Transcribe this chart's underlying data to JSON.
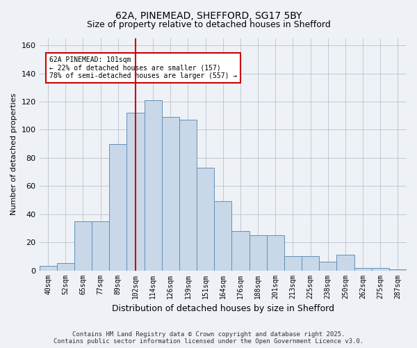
{
  "title1": "62A, PINEMEAD, SHEFFORD, SG17 5BY",
  "title2": "Size of property relative to detached houses in Shefford",
  "xlabel": "Distribution of detached houses by size in Shefford",
  "ylabel": "Number of detached properties",
  "categories": [
    "40sqm",
    "52sqm",
    "65sqm",
    "77sqm",
    "89sqm",
    "102sqm",
    "114sqm",
    "126sqm",
    "139sqm",
    "151sqm",
    "164sqm",
    "176sqm",
    "188sqm",
    "201sqm",
    "213sqm",
    "225sqm",
    "238sqm",
    "250sqm",
    "262sqm",
    "275sqm",
    "287sqm"
  ],
  "values": [
    3,
    5,
    35,
    35,
    90,
    112,
    121,
    109,
    107,
    73,
    49,
    28,
    25,
    25,
    10,
    10,
    6,
    11,
    2,
    2,
    1
  ],
  "bar_color": "#c8d8e8",
  "bar_edge_color": "#6090b8",
  "vline_x": 5,
  "vline_color": "#cc0000",
  "annotation_text": "62A PINEMEAD: 101sqm\n← 22% of detached houses are smaller (157)\n78% of semi-detached houses are larger (557) →",
  "annotation_box_color": "#ffffff",
  "annotation_box_edge": "#cc0000",
  "bg_color": "#eef2f6",
  "grid_color": "#c0c8d8",
  "footnote": "Contains HM Land Registry data © Crown copyright and database right 2025.\nContains public sector information licensed under the Open Government Licence v3.0.",
  "ylim": [
    0,
    165
  ],
  "yticks": [
    0,
    20,
    40,
    60,
    80,
    100,
    120,
    140,
    160
  ]
}
